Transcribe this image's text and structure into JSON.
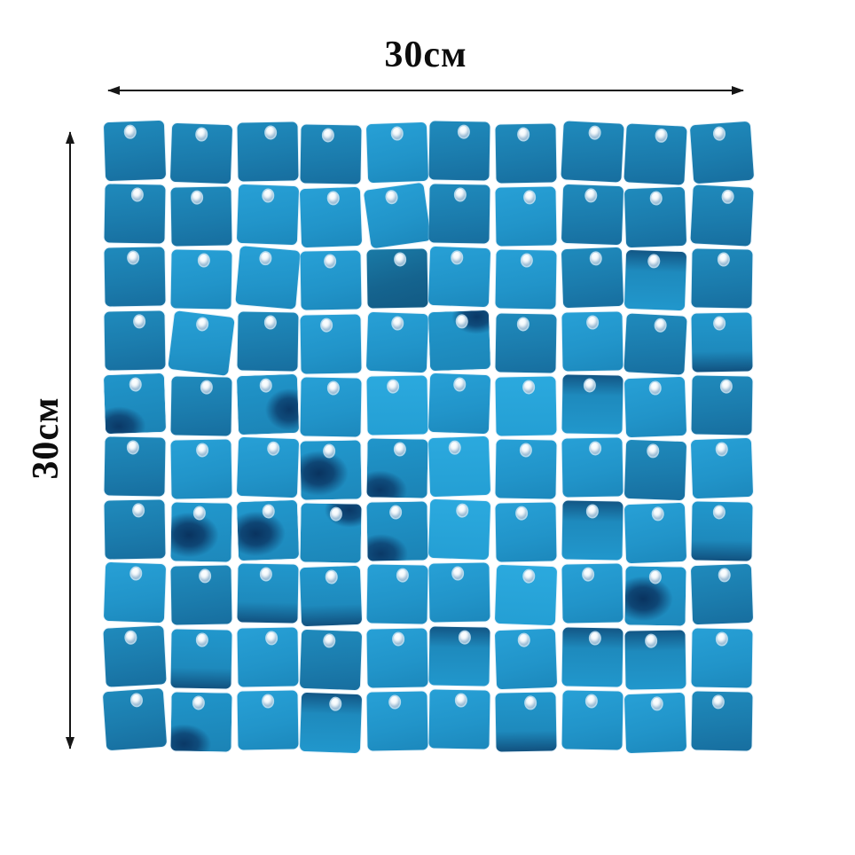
{
  "page": {
    "background": "#ffffff",
    "arrow_color": "#161616",
    "label_color": "#0d0d0d"
  },
  "dimensions": {
    "width_label": "30см",
    "height_label": "30см"
  },
  "panel": {
    "rows": 10,
    "cols": 10,
    "hole_color": "#fafdfe",
    "base_blue": "#1f8abc",
    "bright_blue": "#27a0d6",
    "dark_steel": "#15648f",
    "navy_reflection": "#0a3866",
    "variants": [
      "linear-gradient(172deg, #1f8abc 0%, #1b7cad 55%, #176e9f 100%)",
      "linear-gradient(168deg, #27a0d6 0%, #2194c9 60%, #1c88bc 100%)",
      "linear-gradient(180deg, #2ba9de 0%, #249fd4 100%)",
      "linear-gradient(165deg, #1a7aa6 0%, #15648f 55%, #125a84 100%)",
      "radial-gradient(ellipse 60% 45% at 22% 88%, #0a3866 0%, #0f4c7c 40%, rgba(32,149,202,0) 75%), linear-gradient(172deg, #2095ca 0%, #1b83b5 100%)",
      "radial-gradient(ellipse 55% 40% at 80% 10%, #0a3866 0%, #0f4c7c 40%, rgba(32,149,202,0) 75%), linear-gradient(172deg, #2197cc 0%, #1c86b8 100%)",
      "radial-gradient(ellipse 70% 55% at 30% 55%, #09335f 0%, #0e4675 35%, rgba(33,152,205,0) 70%), linear-gradient(172deg, #2198cd 0%, #1d88bb 100%)",
      "linear-gradient(180deg, #2197cc 0%, #1e8abd 65%, #11517f 100%)",
      "linear-gradient(180deg, #125685 0%, #1e8abd 35%, #2197cc 100%)",
      "radial-gradient(ellipse 55% 50% at 85% 60%, #0a3866 0%, #0f4c7c 38%, rgba(32,149,202,0) 72%), linear-gradient(172deg, #2095ca 0%, #1c84b6 100%)"
    ],
    "cells": [
      {
        "v": 0,
        "r": -2
      },
      {
        "v": 0,
        "r": 2
      },
      {
        "v": 0,
        "r": -1
      },
      {
        "v": 0,
        "r": 1
      },
      {
        "v": 1,
        "r": -2
      },
      {
        "v": 0,
        "r": 1
      },
      {
        "v": 0,
        "r": -1
      },
      {
        "v": 0,
        "r": 3
      },
      {
        "v": 0,
        "r": 3
      },
      {
        "v": 0,
        "r": -4
      },
      {
        "v": 0,
        "r": 1
      },
      {
        "v": 0,
        "r": -1
      },
      {
        "v": 1,
        "r": 2
      },
      {
        "v": 1,
        "r": -2
      },
      {
        "v": 1,
        "r": -8
      },
      {
        "v": 0,
        "r": 1
      },
      {
        "v": 1,
        "r": -1
      },
      {
        "v": 0,
        "r": 2
      },
      {
        "v": 0,
        "r": -2
      },
      {
        "v": 0,
        "r": 3
      },
      {
        "v": 0,
        "r": -1
      },
      {
        "v": 1,
        "r": 1
      },
      {
        "v": 1,
        "r": 5
      },
      {
        "v": 1,
        "r": -1
      },
      {
        "v": 3,
        "r": -1
      },
      {
        "v": 1,
        "r": 2
      },
      {
        "v": 1,
        "r": 1
      },
      {
        "v": 0,
        "r": -2
      },
      {
        "v": 8,
        "r": 2
      },
      {
        "v": 0,
        "r": 1
      },
      {
        "v": 0,
        "r": -1
      },
      {
        "v": 1,
        "r": 7
      },
      {
        "v": 0,
        "r": 1
      },
      {
        "v": 1,
        "r": -1
      },
      {
        "v": 1,
        "r": 2
      },
      {
        "v": 5,
        "r": -2
      },
      {
        "v": 0,
        "r": 1
      },
      {
        "v": 1,
        "r": -1
      },
      {
        "v": 0,
        "r": 3
      },
      {
        "v": 7,
        "r": -1
      },
      {
        "v": 4,
        "r": -2
      },
      {
        "v": 0,
        "r": 1
      },
      {
        "v": 9,
        "r": -2
      },
      {
        "v": 1,
        "r": 1
      },
      {
        "v": 2,
        "r": -1
      },
      {
        "v": 1,
        "r": 2
      },
      {
        "v": 2,
        "r": -1
      },
      {
        "v": 8,
        "r": 1
      },
      {
        "v": 1,
        "r": -2
      },
      {
        "v": 0,
        "r": 1
      },
      {
        "v": 0,
        "r": 1
      },
      {
        "v": 1,
        "r": -1
      },
      {
        "v": 1,
        "r": 2
      },
      {
        "v": 6,
        "r": -1
      },
      {
        "v": 4,
        "r": 1
      },
      {
        "v": 2,
        "r": -2
      },
      {
        "v": 1,
        "r": 1
      },
      {
        "v": 1,
        "r": -1
      },
      {
        "v": 0,
        "r": 2
      },
      {
        "v": 1,
        "r": -2
      },
      {
        "v": 0,
        "r": -1
      },
      {
        "v": 6,
        "r": 1
      },
      {
        "v": 6,
        "r": -2
      },
      {
        "v": 5,
        "r": 1
      },
      {
        "v": 4,
        "r": -1
      },
      {
        "v": 2,
        "r": 2
      },
      {
        "v": 1,
        "r": -1
      },
      {
        "v": 8,
        "r": 1
      },
      {
        "v": 1,
        "r": -2
      },
      {
        "v": 7,
        "r": 1
      },
      {
        "v": 1,
        "r": 2
      },
      {
        "v": 0,
        "r": -1
      },
      {
        "v": 7,
        "r": 1
      },
      {
        "v": 7,
        "r": -2
      },
      {
        "v": 1,
        "r": 1
      },
      {
        "v": 1,
        "r": -1
      },
      {
        "v": 2,
        "r": 2
      },
      {
        "v": 1,
        "r": -1
      },
      {
        "v": 6,
        "r": 1
      },
      {
        "v": 0,
        "r": -2
      },
      {
        "v": 0,
        "r": -3
      },
      {
        "v": 7,
        "r": 1
      },
      {
        "v": 1,
        "r": -1
      },
      {
        "v": 0,
        "r": 2
      },
      {
        "v": 1,
        "r": -1
      },
      {
        "v": 8,
        "r": 1
      },
      {
        "v": 1,
        "r": -2
      },
      {
        "v": 8,
        "r": 1
      },
      {
        "v": 8,
        "r": -1
      },
      {
        "v": 1,
        "r": 1
      },
      {
        "v": 0,
        "r": -4
      },
      {
        "v": 4,
        "r": 1
      },
      {
        "v": 1,
        "r": -1
      },
      {
        "v": 8,
        "r": 2
      },
      {
        "v": 1,
        "r": -1
      },
      {
        "v": 1,
        "r": 1
      },
      {
        "v": 7,
        "r": -1
      },
      {
        "v": 1,
        "r": 1
      },
      {
        "v": 1,
        "r": -2
      },
      {
        "v": 0,
        "r": 1
      }
    ]
  }
}
